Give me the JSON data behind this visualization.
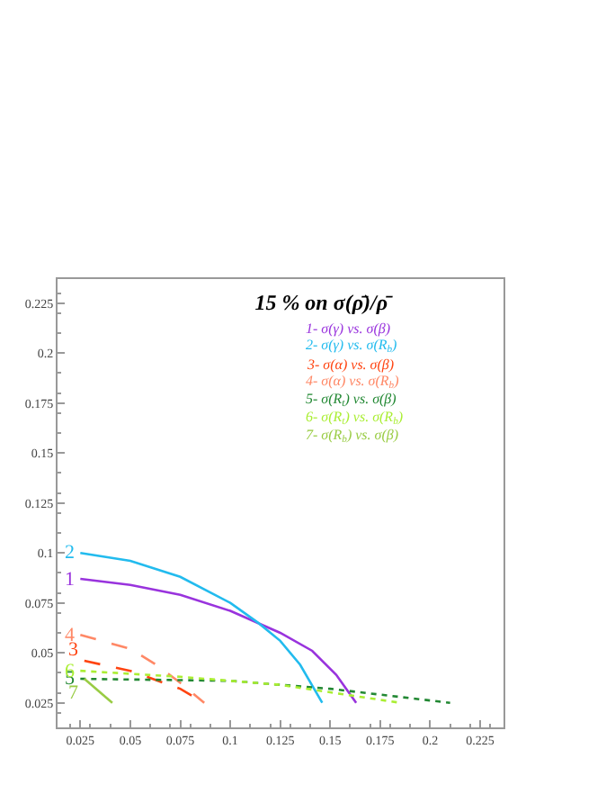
{
  "chart_data": {
    "type": "line",
    "title": "15 % on σ(ρ̄)/ρ̄",
    "xlim": [
      0.0136,
      0.2367
    ],
    "ylim": [
      0.0127,
      0.237
    ],
    "xticks": [
      0.025,
      0.05,
      0.075,
      0.1,
      0.125,
      0.15,
      0.175,
      0.2,
      0.225
    ],
    "yticks": [
      0.025,
      0.05,
      0.075,
      0.1,
      0.125,
      0.15,
      0.175,
      0.2,
      0.225
    ],
    "legend": "top right",
    "marker": "none",
    "series": [
      {
        "name": "1- σ(γ) vs. σ(β)",
        "color": "#9933dd",
        "line_style": "solid",
        "x": [
          0.025,
          0.05,
          0.075,
          0.1,
          0.125,
          0.141,
          0.153,
          0.163
        ],
        "values": [
          0.087,
          0.084,
          0.079,
          0.071,
          0.06,
          0.051,
          0.039,
          0.025
        ]
      },
      {
        "name": "2- σ(γ) vs. σ(R$_{b}$)",
        "color": "#22bbee",
        "line_style": "solid",
        "x": [
          0.025,
          0.05,
          0.075,
          0.1,
          0.114,
          0.125,
          0.135,
          0.146
        ],
        "values": [
          0.1,
          0.096,
          0.088,
          0.075,
          0.065,
          0.056,
          0.044,
          0.025
        ]
      },
      {
        "name": "3- σ(α) vs. σ(β)",
        "color": "#ff4411",
        "line_style": "dashed",
        "x": [
          0.027,
          0.05,
          0.075,
          0.087
        ],
        "values": [
          0.046,
          0.041,
          0.032,
          0.025
        ]
      },
      {
        "name": "4- σ(α) vs. σ(R$_{b}$)",
        "color": "#ff8866",
        "line_style": "dashed",
        "x": [
          0.025,
          0.05,
          0.063,
          0.075,
          0.087
        ],
        "values": [
          0.059,
          0.052,
          0.044,
          0.035,
          0.025
        ]
      },
      {
        "name": "5- σ(R$_{t}$) vs. σ(β)",
        "color": "#228833",
        "line_style": "dotted",
        "x": [
          0.025,
          0.1,
          0.15,
          0.21
        ],
        "values": [
          0.037,
          0.036,
          0.032,
          0.025
        ]
      },
      {
        "name": "6- σ(R$_{t}$) vs. σ(R$_{b}$)",
        "color": "#aaee33",
        "line_style": "dotted",
        "x": [
          0.025,
          0.075,
          0.125,
          0.185
        ],
        "values": [
          0.041,
          0.038,
          0.034,
          0.025
        ]
      },
      {
        "name": "7- σ(R$_{b}$) vs. σ(β)",
        "color": "#99cc44",
        "line_style": "solid",
        "x": [
          0.027,
          0.041
        ],
        "values": [
          0.037,
          0.025
        ]
      }
    ],
    "annotations": [
      "1",
      "2",
      "3",
      "4",
      "5",
      "6",
      "7"
    ]
  }
}
